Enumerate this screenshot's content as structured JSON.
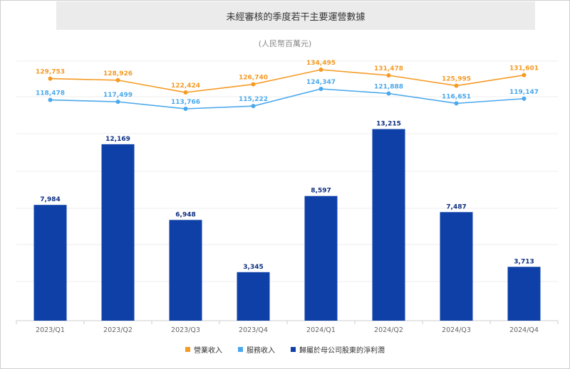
{
  "chart_data": {
    "type": "bar",
    "title": "未經審核的季度若干主要運營數據",
    "subtitle": "(人民幣百萬元)",
    "categories": [
      "2023/Q1",
      "2023/Q2",
      "2023/Q3",
      "2023/Q4",
      "2024/Q1",
      "2024/Q2",
      "2024/Q3",
      "2024/Q4"
    ],
    "series": [
      {
        "name": "營業收入",
        "type": "line",
        "color": "#f59a23",
        "values": [
          129753,
          128926,
          122424,
          126740,
          134495,
          131478,
          125995,
          131601
        ],
        "labels": [
          "129,753",
          "128,926",
          "122,424",
          "126,740",
          "134,495",
          "131,478",
          "125,995",
          "131,601"
        ]
      },
      {
        "name": "服務收入",
        "type": "line",
        "color": "#4aa8ec",
        "values": [
          118478,
          117499,
          113766,
          115222,
          124347,
          121888,
          116651,
          119147
        ],
        "labels": [
          "118,478",
          "117,499",
          "113,766",
          "115,222",
          "124,347",
          "121,888",
          "116,651",
          "119,147"
        ]
      },
      {
        "name": "歸屬於母公司股東的淨利潤",
        "type": "bar",
        "color": "#0e40a8",
        "values": [
          7984,
          12169,
          6948,
          3345,
          8597,
          13215,
          7487,
          3713
        ],
        "labels": [
          "7,984",
          "12,169",
          "6,948",
          "3,345",
          "8,597",
          "13,215",
          "7,487",
          "3,713"
        ]
      }
    ],
    "grid": true,
    "legend": "bottom-center"
  }
}
